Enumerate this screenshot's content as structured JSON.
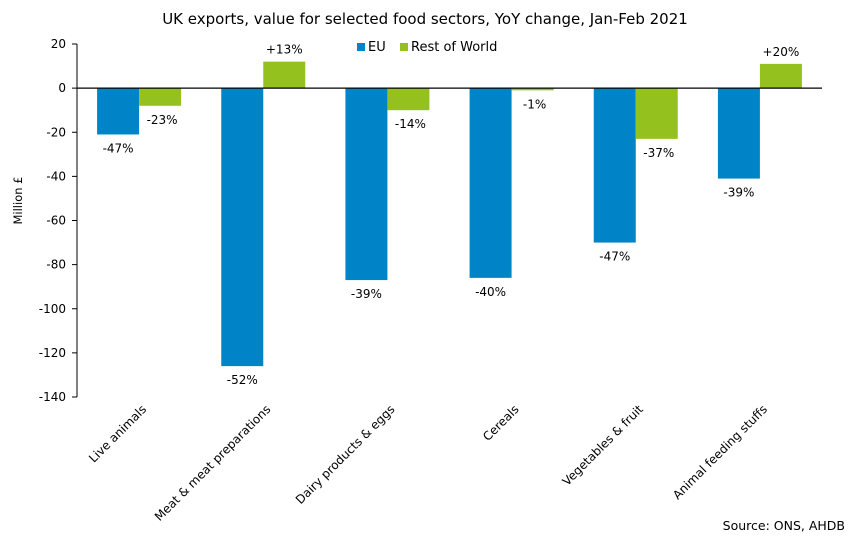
{
  "chart_data": {
    "type": "bar",
    "title": "UK exports, value for selected food sectors, YoY change, Jan-Feb 2021",
    "xlabel": "",
    "ylabel": "Million £",
    "ylim": [
      -140,
      20
    ],
    "yticks": [
      20,
      0,
      -20,
      -40,
      -60,
      -80,
      -100,
      -120,
      -140
    ],
    "grid": false,
    "legend_placement": "top-center",
    "categories": [
      "Live animals",
      "Meat & meat preparations",
      "Dairy products & eggs",
      "Cereals",
      "Vegetables & fruit",
      "Animal feeding stuffs"
    ],
    "series": [
      {
        "name": "EU",
        "color": "#0084C8",
        "values": [
          -21,
          -126,
          -87,
          -86,
          -70,
          -41
        ],
        "data_labels": [
          "-47%",
          "-52%",
          "-39%",
          "-40%",
          "-47%",
          "-39%"
        ]
      },
      {
        "name": "Rest of World",
        "color": "#95C11F",
        "values": [
          -8,
          12,
          -10,
          -1,
          -23,
          11
        ],
        "data_labels": [
          "-23%",
          "+13%",
          "-14%",
          "-1%",
          "-37%",
          "+20%"
        ]
      }
    ],
    "source": "Source: ONS, AHDB"
  }
}
